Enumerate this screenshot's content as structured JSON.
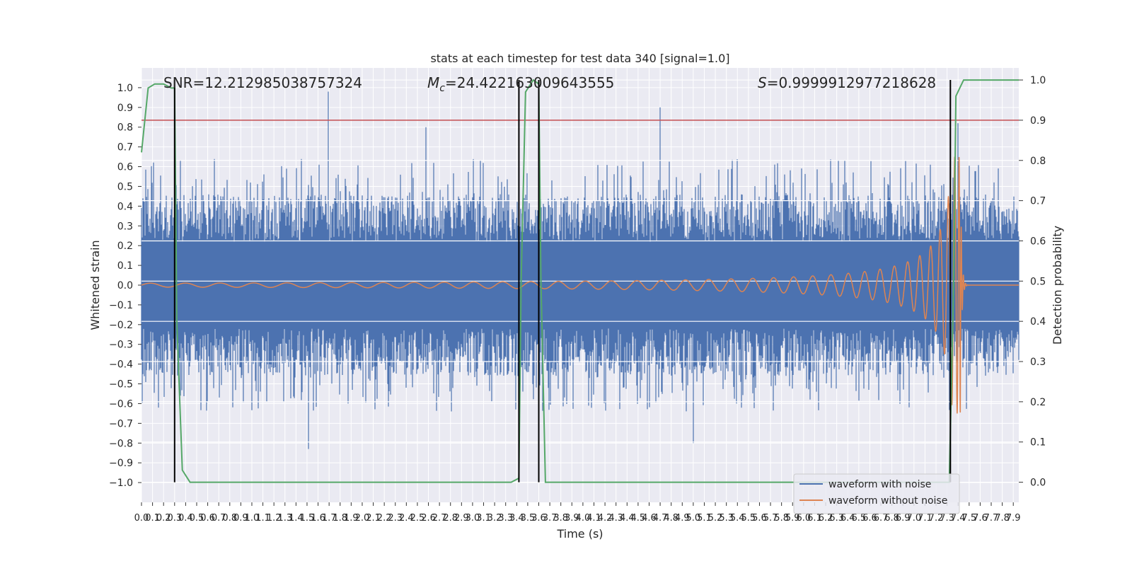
{
  "chart_data": {
    "type": "line",
    "title": "stats at each timestep for test data 340 [signal=1.0]",
    "xlabel": "Time (s)",
    "ylabel": "Whitened strain",
    "y2label": "Detection probability",
    "xlim": [
      0.0,
      7.95
    ],
    "ylim": [
      -1.1,
      1.1
    ],
    "y2lim": [
      -0.05,
      1.03
    ],
    "grid": true,
    "legend_position": "lower-right",
    "annotations": {
      "snr": "SNR=12.212985038757324",
      "mc_symbol": "M",
      "mc_sub": "c",
      "mc_value": "=24.422163009643555",
      "s_symbol": "S",
      "s_value": "=0.9999912977218628"
    },
    "x_ticks": [
      "0.0",
      "0.1",
      "0.2",
      "0.3",
      "0.4",
      "0.5",
      "0.6",
      "0.7",
      "0.8",
      "0.9",
      "1.0",
      "1.1",
      "1.2",
      "1.3",
      "1.4",
      "1.5",
      "1.6",
      "1.7",
      "1.8",
      "1.9",
      "2.0",
      "2.1",
      "2.2",
      "2.3",
      "2.4",
      "2.5",
      "2.6",
      "2.7",
      "2.8",
      "2.9",
      "3.0",
      "3.1",
      "3.2",
      "3.3",
      "3.4",
      "3.5",
      "3.6",
      "3.7",
      "3.8",
      "3.9",
      "4.0",
      "4.1",
      "4.2",
      "4.3",
      "4.4",
      "4.5",
      "4.6",
      "4.7",
      "4.8",
      "4.9",
      "5.0",
      "5.1",
      "5.2",
      "5.3",
      "5.4",
      "5.5",
      "5.6",
      "5.7",
      "5.8",
      "5.9",
      "6.0",
      "6.1",
      "6.2",
      "6.3",
      "6.4",
      "6.5",
      "6.6",
      "6.7",
      "6.8",
      "6.9",
      "7.0",
      "7.1",
      "7.2",
      "7.3",
      "7.4",
      "7.5",
      "7.6",
      "7.7",
      "7.8",
      "7.9"
    ],
    "y_ticks": [
      "1.0",
      "0.9",
      "0.8",
      "0.7",
      "0.6",
      "0.5",
      "0.4",
      "0.3",
      "0.2",
      "0.1",
      "0.0",
      "−0.1",
      "−0.2",
      "−0.3",
      "−0.4",
      "−0.5",
      "−0.6",
      "−0.7",
      "−0.8",
      "−0.9",
      "−1.0"
    ],
    "y2_ticks": [
      "1.0",
      "0.9",
      "0.8",
      "0.7",
      "0.6",
      "0.5",
      "0.4",
      "0.3",
      "0.2",
      "0.1",
      "0.0"
    ],
    "threshold_line": {
      "y2": 0.9,
      "color": "#c44e52"
    },
    "vertical_lines": [
      0.3,
      3.42,
      3.6,
      7.33
    ],
    "series": [
      {
        "name": "waveform with noise",
        "color": "#4c72b0",
        "kind": "noisy-strain",
        "approx_abs_amplitude": 0.4,
        "notable_peaks": [
          {
            "x": 0.3,
            "y": -0.95
          },
          {
            "x": 1.69,
            "y": 0.98
          },
          {
            "x": 2.58,
            "y": 0.8
          },
          {
            "x": 4.7,
            "y": 0.9
          },
          {
            "x": 1.51,
            "y": -0.83
          },
          {
            "x": 5.0,
            "y": -0.8
          },
          {
            "x": 7.4,
            "y": 0.82
          }
        ]
      },
      {
        "name": "waveform without noise",
        "color": "#dd8452",
        "kind": "chirp",
        "amplitude_early": 0.01,
        "peak_time": 7.42,
        "peak_amplitude": 0.65,
        "end_time": 7.5
      },
      {
        "name": "",
        "axis": "right",
        "color": "#55a868",
        "kind": "detection-probability",
        "points": [
          [
            0.0,
            0.82
          ],
          [
            0.06,
            0.98
          ],
          [
            0.12,
            0.99
          ],
          [
            0.2,
            0.99
          ],
          [
            0.27,
            0.98
          ],
          [
            0.3,
            0.98
          ],
          [
            0.32,
            0.4
          ],
          [
            0.37,
            0.03
          ],
          [
            0.44,
            0.0
          ],
          [
            3.35,
            0.0
          ],
          [
            3.42,
            0.01
          ],
          [
            3.44,
            0.5
          ],
          [
            3.48,
            0.97
          ],
          [
            3.55,
            1.0
          ],
          [
            3.6,
            0.99
          ],
          [
            3.62,
            0.5
          ],
          [
            3.66,
            0.0
          ],
          [
            7.32,
            0.0
          ],
          [
            7.36,
            0.5
          ],
          [
            7.38,
            0.96
          ],
          [
            7.45,
            1.0
          ],
          [
            7.95,
            1.0
          ]
        ]
      }
    ]
  }
}
